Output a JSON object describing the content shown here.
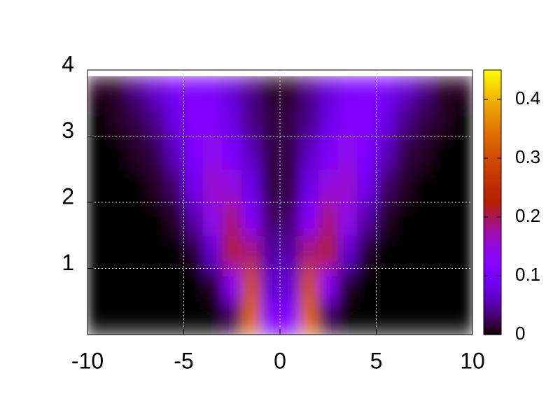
{
  "chart_data": {
    "type": "heatmap",
    "x_edges": [
      -10,
      -9,
      -8,
      -7,
      -6,
      -5,
      -4,
      -3,
      -2,
      -1,
      0,
      1,
      2,
      3,
      4,
      5,
      6,
      7,
      8,
      9,
      10
    ],
    "y_edges": [
      0,
      0.5,
      1,
      1.5,
      2,
      2.5,
      3,
      3.5,
      3.9
    ],
    "values": [
      [
        0,
        0,
        0,
        0,
        0,
        0,
        0,
        0.02,
        0.33,
        0.12,
        0.12,
        0.33,
        0.02,
        0,
        0,
        0,
        0,
        0,
        0,
        0
      ],
      [
        0,
        0,
        0,
        0,
        0,
        0,
        0.01,
        0.13,
        0.3,
        0.07,
        0.07,
        0.3,
        0.13,
        0.01,
        0,
        0,
        0,
        0,
        0,
        0
      ],
      [
        0,
        0,
        0,
        0,
        0,
        0.01,
        0.07,
        0.22,
        0.19,
        0.05,
        0.05,
        0.19,
        0.22,
        0.07,
        0.01,
        0,
        0,
        0,
        0,
        0
      ],
      [
        0,
        0,
        0,
        0,
        0.01,
        0.05,
        0.14,
        0.19,
        0.12,
        0.03,
        0.03,
        0.12,
        0.19,
        0.14,
        0.05,
        0.01,
        0,
        0,
        0,
        0
      ],
      [
        0,
        0,
        0,
        0.01,
        0.03,
        0.09,
        0.16,
        0.15,
        0.08,
        0.02,
        0.02,
        0.08,
        0.15,
        0.16,
        0.09,
        0.03,
        0.01,
        0,
        0,
        0
      ],
      [
        0,
        0,
        0.01,
        0.02,
        0.06,
        0.11,
        0.14,
        0.11,
        0.06,
        0.02,
        0.02,
        0.06,
        0.11,
        0.14,
        0.11,
        0.06,
        0.02,
        0.01,
        0,
        0
      ],
      [
        0,
        0.01,
        0.02,
        0.04,
        0.08,
        0.12,
        0.12,
        0.08,
        0.04,
        0.02,
        0.02,
        0.04,
        0.08,
        0.12,
        0.12,
        0.08,
        0.04,
        0.02,
        0.01,
        0
      ],
      [
        0.01,
        0.01,
        0.04,
        0.07,
        0.1,
        0.11,
        0.1,
        0.07,
        0.04,
        0.01,
        0.01,
        0.04,
        0.07,
        0.1,
        0.11,
        0.1,
        0.07,
        0.04,
        0.01,
        0.01
      ]
    ],
    "xlim": [
      -10,
      10
    ],
    "ylim": [
      0,
      4
    ],
    "xticks": [
      -10,
      -5,
      0,
      5,
      10
    ],
    "yticks": [
      1,
      2,
      3,
      4
    ],
    "grid": true,
    "palette": "gnuplot-rgbformulae-7-5-15",
    "cblim": [
      0,
      0.45
    ],
    "cbticks": [
      0,
      0.1,
      0.2,
      0.3,
      0.4
    ]
  }
}
